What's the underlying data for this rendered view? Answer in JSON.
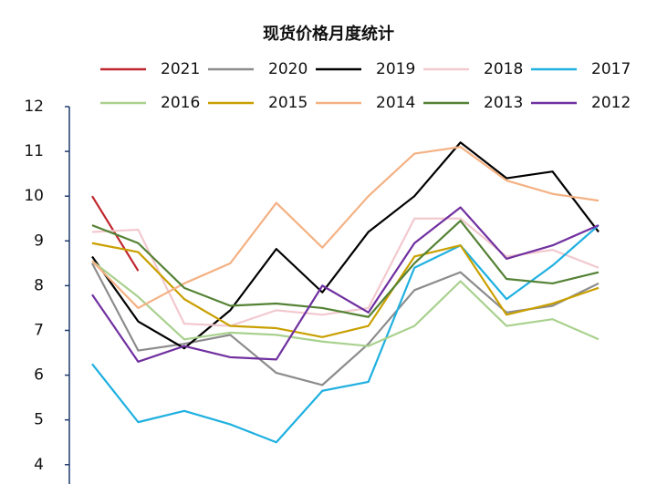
{
  "chart_data": {
    "type": "line",
    "title": "现货价格月度统计",
    "categories": [
      null,
      null,
      null,
      null,
      null,
      null,
      null,
      null,
      null,
      null,
      null,
      null
    ],
    "ylim": [
      3.7,
      12
    ],
    "yticks": [
      4,
      5,
      6,
      7,
      8,
      9,
      10,
      11,
      12
    ],
    "series": [
      {
        "name": "2021",
        "color": "#c0262d",
        "values": [
          10.0,
          8.33,
          null,
          null,
          null,
          null,
          null,
          null,
          null,
          null,
          null,
          null
        ]
      },
      {
        "name": "2020",
        "color": "#8c8c8c",
        "values": [
          8.5,
          6.55,
          6.7,
          6.9,
          6.05,
          5.78,
          6.7,
          7.9,
          8.3,
          7.4,
          7.55,
          8.05
        ]
      },
      {
        "name": "2019",
        "color": "#000000",
        "values": [
          8.65,
          7.2,
          6.6,
          7.45,
          8.82,
          7.85,
          9.2,
          10.0,
          11.2,
          10.4,
          10.55,
          9.2
        ]
      },
      {
        "name": "2018",
        "color": "#f2c9cf",
        "values": [
          9.2,
          9.25,
          7.15,
          7.1,
          7.45,
          7.35,
          7.5,
          9.5,
          9.5,
          8.65,
          8.8,
          8.4
        ]
      },
      {
        "name": "2017",
        "color": "#1fb0e0",
        "values": [
          6.25,
          4.95,
          5.2,
          4.9,
          4.5,
          5.65,
          5.85,
          8.4,
          8.9,
          7.7,
          8.45,
          9.35
        ]
      },
      {
        "name": "2016",
        "color": "#a9d18e",
        "values": [
          8.55,
          7.75,
          6.8,
          6.95,
          6.9,
          6.75,
          6.65,
          7.1,
          8.1,
          7.1,
          7.25,
          6.8
        ]
      },
      {
        "name": "2015",
        "color": "#c9a000",
        "values": [
          8.95,
          8.75,
          7.7,
          7.1,
          7.05,
          6.85,
          7.1,
          8.65,
          8.9,
          7.35,
          7.6,
          7.95
        ]
      },
      {
        "name": "2014",
        "color": "#f4b183",
        "values": [
          8.55,
          7.5,
          8.05,
          8.5,
          9.85,
          8.85,
          10.0,
          10.95,
          11.1,
          10.35,
          10.05,
          9.9
        ]
      },
      {
        "name": "2013",
        "color": "#548235",
        "values": [
          9.35,
          8.95,
          7.95,
          7.55,
          7.6,
          7.5,
          7.3,
          8.5,
          9.45,
          8.15,
          8.05,
          8.3
        ]
      },
      {
        "name": "2012",
        "color": "#7030a0",
        "values": [
          7.8,
          6.3,
          6.65,
          6.4,
          6.35,
          8.0,
          7.4,
          8.95,
          9.75,
          8.6,
          8.9,
          9.35
        ]
      }
    ]
  }
}
